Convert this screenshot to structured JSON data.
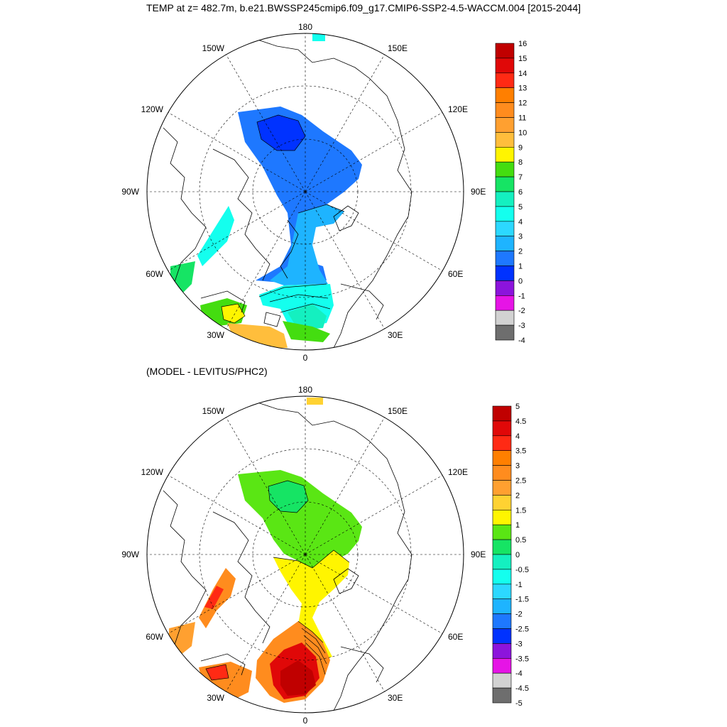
{
  "title": "TEMP at z= 482.7m, b.e21.BWSSP245cmip6.f09_g17.CMIP6-SSP2-4.5-WACCM.004 [2015-2044]",
  "panels": [
    {
      "id": "model",
      "subtitle": "",
      "lon_labels": {
        "top": "180",
        "bottom": "0",
        "left": "90W",
        "right": "90E",
        "ul1": "150W",
        "ul2": "120W",
        "ur1": "150E",
        "ur2": "120E",
        "ll1": "60W",
        "ll2": "30W",
        "lr1": "60E",
        "lr2": "30E"
      },
      "colorbar": {
        "labels": [
          "16",
          "15",
          "14",
          "13",
          "12",
          "11",
          "10",
          "9",
          "8",
          "7",
          "6",
          "5",
          "4",
          "3",
          "2",
          "1",
          "0",
          "-1",
          "-2",
          "-3",
          "-4"
        ],
        "colors": [
          "#c00000",
          "#e00808",
          "#ff2a14",
          "#ff7f00",
          "#ff8c1e",
          "#ffa030",
          "#ffbe3c",
          "#fff500",
          "#44dd10",
          "#16e464",
          "#14f0c0",
          "#14ffee",
          "#2cd8ff",
          "#1eb4ff",
          "#1e78ff",
          "#0032ff",
          "#8c14dc",
          "#e614e6",
          "#d2d2d2",
          "#6e6e6e"
        ]
      }
    },
    {
      "id": "diff",
      "subtitle": "(MODEL - LEVITUS/PHC2)",
      "lon_labels": {
        "top": "180",
        "bottom": "0",
        "left": "90W",
        "right": "90E",
        "ul1": "150W",
        "ul2": "120W",
        "ur1": "150E",
        "ur2": "120E",
        "ll1": "60W",
        "ll2": "30W",
        "lr1": "60E",
        "lr2": "30E"
      },
      "colorbar": {
        "labels": [
          "5",
          "4.5",
          "4",
          "3.5",
          "3",
          "2.5",
          "2",
          "1.5",
          "1",
          "0.5",
          "0",
          "-0.5",
          "-1",
          "-1.5",
          "-2",
          "-2.5",
          "-3",
          "-3.5",
          "-4",
          "-4.5",
          "-5"
        ],
        "colors": [
          "#c00000",
          "#e00808",
          "#ff2a14",
          "#ff7f00",
          "#ff8c1e",
          "#ffa030",
          "#ffd232",
          "#fff500",
          "#5ae614",
          "#16e464",
          "#14f0c0",
          "#14ffee",
          "#2cd8ff",
          "#1eb4ff",
          "#1e78ff",
          "#0032ff",
          "#8c14dc",
          "#e614e6",
          "#d2d2d2",
          "#6e6e6e"
        ]
      }
    }
  ]
}
